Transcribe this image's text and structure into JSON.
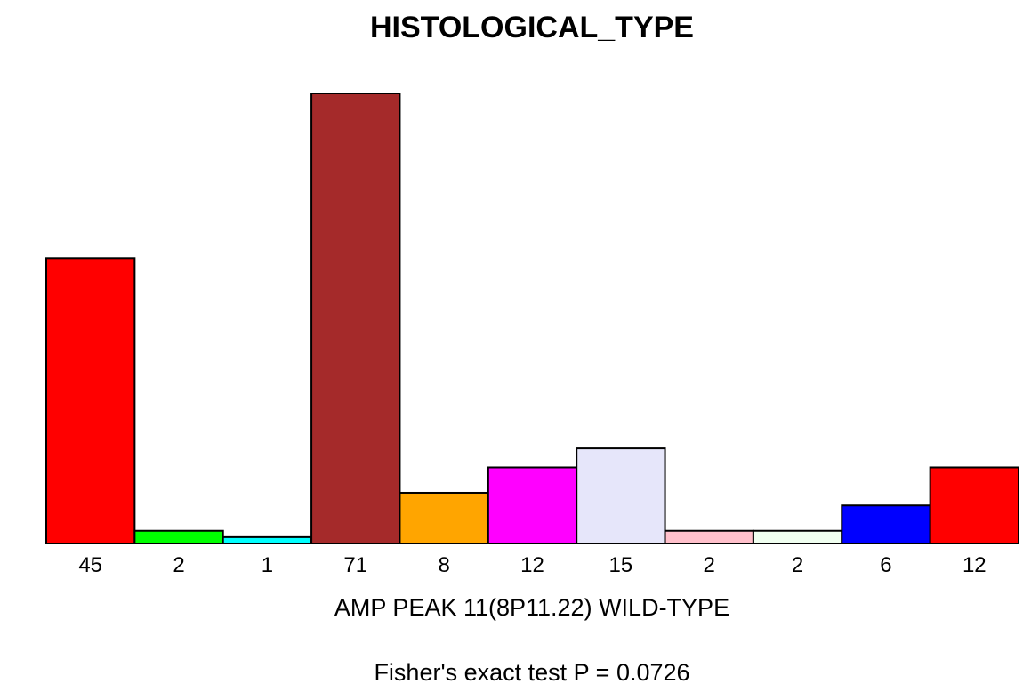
{
  "chart_data": {
    "type": "bar",
    "title": "HISTOLOGICAL_TYPE",
    "xlabel": "AMP PEAK 11(8P11.22) WILD-TYPE",
    "ylabel": "",
    "footnote": "Fisher's exact test P = 0.0726",
    "categories": [
      "45",
      "2",
      "1",
      "71",
      "8",
      "12",
      "15",
      "2",
      "2",
      "6",
      "12"
    ],
    "values": [
      45,
      2,
      1,
      71,
      8,
      12,
      15,
      2,
      2,
      6,
      12
    ],
    "colors": [
      "#ff0000",
      "#00ff00",
      "#00ffff",
      "#a52a2a",
      "#ffa500",
      "#ff00ff",
      "#e6e6fa",
      "#ffc0cb",
      "#f0fff0",
      "#0000ff",
      "#ff0000"
    ],
    "ylim": [
      0,
      71
    ],
    "grid": false,
    "legend": "none"
  }
}
